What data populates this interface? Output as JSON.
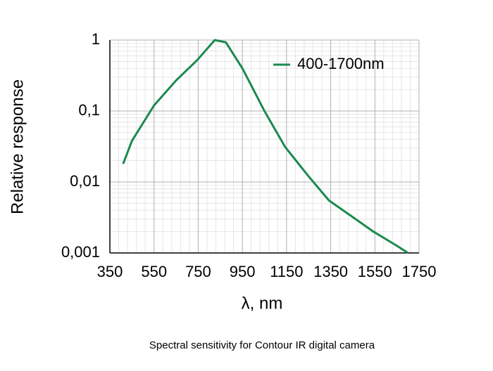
{
  "chart_data": {
    "type": "line",
    "caption": "Spectral sensitivity for Contour IR digital camera",
    "xlabel": "λ, nm",
    "ylabel": "Relative response",
    "x": [
      410,
      450,
      550,
      650,
      745,
      825,
      875,
      950,
      1050,
      1144,
      1250,
      1342,
      1450,
      1543,
      1650,
      1700
    ],
    "series": [
      {
        "name": "400-1700nm",
        "color": "#1b8a4f",
        "values": [
          0.018,
          0.038,
          0.12,
          0.27,
          0.52,
          1,
          0.93,
          0.4,
          0.1,
          0.031,
          0.012,
          0.0055,
          0.0032,
          0.002,
          0.00126,
          0.001
        ]
      }
    ],
    "xlim": [
      350,
      1750
    ],
    "xticks": [
      350,
      550,
      750,
      950,
      1150,
      1350,
      1550,
      1750
    ],
    "ylim": [
      0.001,
      1
    ],
    "yticks": [
      {
        "value": 0.001,
        "label": "0,001"
      },
      {
        "value": 0.01,
        "label": "0,01"
      },
      {
        "value": 0.1,
        "label": "0,1"
      },
      1
    ],
    "yscale": "log",
    "grid": true,
    "legend": "upper right"
  }
}
